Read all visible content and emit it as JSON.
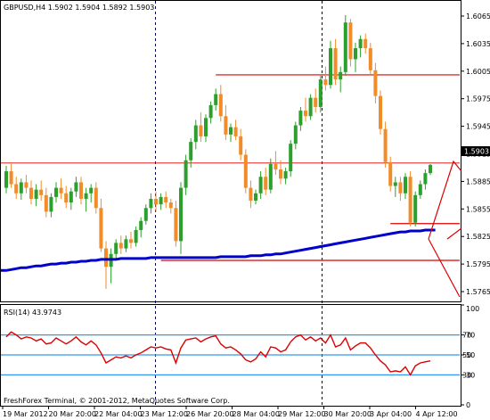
{
  "header": {
    "symbol_text": "GBPUSD,H4  1.5902 1.5904 1.5892 1.5903"
  },
  "rsi_header": {
    "text": "RSI(14) 43.9743"
  },
  "footer": {
    "copyright": "FreshForex Terminal, © 2001-2012, MetaQuotes Software Corp."
  },
  "price_axis": {
    "labels": [
      "1.6065",
      "1.6035",
      "1.6005",
      "1.5975",
      "1.5945",
      "1.5915",
      "1.5885",
      "1.5855",
      "1.5825",
      "1.5795",
      "1.5765"
    ],
    "current": "1.5903"
  },
  "rsi_axis": {
    "labels": [
      "100",
      "70",
      "50",
      "30",
      "0"
    ]
  },
  "time_axis": {
    "labels": [
      "19 Mar 2012",
      "20 Mar 20:00",
      "22 Mar 04:00",
      "23 Mar 12:00",
      "26 Mar 20:00",
      "28 Mar 04:00",
      "29 Mar 12:00",
      "30 Mar 20:00",
      "3 Apr 04:00",
      "4 Apr 12:00"
    ]
  },
  "colors": {
    "bull": "#2ca02c",
    "bear": "#f28c28",
    "ma": "#0000cc",
    "level": "#dd0000",
    "rsi_line": "#dd0000",
    "rsi_level": "#3399ee",
    "separator": "#000066"
  },
  "chart_data": {
    "type": "candlestick",
    "symbol": "GBPUSD",
    "timeframe": "H4",
    "ylim": [
      1.5755,
      1.6075
    ],
    "candles": [
      [
        1.5878,
        1.5902,
        1.5872,
        1.5896
      ],
      [
        1.5896,
        1.5904,
        1.5878,
        1.5882
      ],
      [
        1.5882,
        1.589,
        1.5866,
        1.5872
      ],
      [
        1.5872,
        1.5888,
        1.5865,
        1.5884
      ],
      [
        1.5884,
        1.5892,
        1.5872,
        1.5878
      ],
      [
        1.5878,
        1.5886,
        1.586,
        1.5866
      ],
      [
        1.5866,
        1.5882,
        1.5858,
        1.5876
      ],
      [
        1.5876,
        1.5886,
        1.5864,
        1.587
      ],
      [
        1.587,
        1.5878,
        1.5846,
        1.5852
      ],
      [
        1.5852,
        1.5872,
        1.5846,
        1.5868
      ],
      [
        1.5868,
        1.5884,
        1.5862,
        1.5878
      ],
      [
        1.5878,
        1.5888,
        1.5866,
        1.5872
      ],
      [
        1.5872,
        1.588,
        1.5856,
        1.5862
      ],
      [
        1.5862,
        1.5878,
        1.5854,
        1.5874
      ],
      [
        1.5874,
        1.589,
        1.5868,
        1.5884
      ],
      [
        1.5884,
        1.589,
        1.586,
        1.5866
      ],
      [
        1.5866,
        1.5878,
        1.5852,
        1.5872
      ],
      [
        1.5872,
        1.5882,
        1.5862,
        1.5878
      ],
      [
        1.5878,
        1.5884,
        1.585,
        1.5856
      ],
      [
        1.5856,
        1.5866,
        1.5808,
        1.5812
      ],
      [
        1.5812,
        1.582,
        1.5768,
        1.5792
      ],
      [
        1.5792,
        1.5812,
        1.5774,
        1.5806
      ],
      [
        1.5806,
        1.5822,
        1.58,
        1.5818
      ],
      [
        1.5818,
        1.5826,
        1.5806,
        1.5812
      ],
      [
        1.5812,
        1.5826,
        1.5808,
        1.5822
      ],
      [
        1.5822,
        1.583,
        1.5812,
        1.5818
      ],
      [
        1.5818,
        1.5836,
        1.5814,
        1.5832
      ],
      [
        1.5832,
        1.5846,
        1.5824,
        1.5842
      ],
      [
        1.5842,
        1.586,
        1.5838,
        1.5856
      ],
      [
        1.5856,
        1.5872,
        1.585,
        1.5866
      ],
      [
        1.5866,
        1.5874,
        1.5852,
        1.586
      ],
      [
        1.586,
        1.5872,
        1.5854,
        1.5868
      ],
      [
        1.5868,
        1.5874,
        1.5856,
        1.5862
      ],
      [
        1.5862,
        1.5866,
        1.585,
        1.5856
      ],
      [
        1.5856,
        1.5864,
        1.5814,
        1.582
      ],
      [
        1.582,
        1.5884,
        1.5806,
        1.5878
      ],
      [
        1.5878,
        1.5914,
        1.587,
        1.5908
      ],
      [
        1.5908,
        1.5932,
        1.59,
        1.5928
      ],
      [
        1.5928,
        1.5952,
        1.592,
        1.5946
      ],
      [
        1.5946,
        1.596,
        1.5928,
        1.5934
      ],
      [
        1.5934,
        1.5958,
        1.5928,
        1.5954
      ],
      [
        1.5954,
        1.5972,
        1.5948,
        1.5968
      ],
      [
        1.5968,
        1.5986,
        1.5962,
        1.598
      ],
      [
        1.598,
        1.599,
        1.595,
        1.5956
      ],
      [
        1.5956,
        1.5968,
        1.593,
        1.5936
      ],
      [
        1.5936,
        1.5948,
        1.5928,
        1.5944
      ],
      [
        1.5944,
        1.5952,
        1.593,
        1.5934
      ],
      [
        1.5934,
        1.5942,
        1.5908,
        1.5914
      ],
      [
        1.5914,
        1.592,
        1.5872,
        1.5878
      ],
      [
        1.5878,
        1.5886,
        1.5856,
        1.5864
      ],
      [
        1.5864,
        1.5876,
        1.586,
        1.5872
      ],
      [
        1.5872,
        1.5896,
        1.5866,
        1.589
      ],
      [
        1.589,
        1.59,
        1.587,
        1.5876
      ],
      [
        1.5876,
        1.591,
        1.5872,
        1.5904
      ],
      [
        1.5904,
        1.5918,
        1.5892,
        1.5898
      ],
      [
        1.5898,
        1.5908,
        1.5882,
        1.5888
      ],
      [
        1.5888,
        1.59,
        1.5882,
        1.5896
      ],
      [
        1.5896,
        1.593,
        1.589,
        1.5926
      ],
      [
        1.5926,
        1.595,
        1.592,
        1.5946
      ],
      [
        1.5946,
        1.5966,
        1.594,
        1.5962
      ],
      [
        1.5962,
        1.5976,
        1.595,
        1.5956
      ],
      [
        1.5956,
        1.598,
        1.5952,
        1.5976
      ],
      [
        1.5976,
        1.5986,
        1.596,
        1.5966
      ],
      [
        1.5966,
        1.6,
        1.596,
        1.5996
      ],
      [
        1.5996,
        1.601,
        1.5984,
        1.599
      ],
      [
        1.599,
        1.6038,
        1.5986,
        1.603
      ],
      [
        1.603,
        1.604,
        1.599,
        1.5996
      ],
      [
        1.5996,
        1.601,
        1.5982,
        1.6004
      ],
      [
        1.6004,
        1.6066,
        1.6,
        1.6058
      ],
      [
        1.6058,
        1.6062,
        1.601,
        1.6018
      ],
      [
        1.6018,
        1.6036,
        1.6004,
        1.603
      ],
      [
        1.603,
        1.6044,
        1.602,
        1.604
      ],
      [
        1.604,
        1.6046,
        1.6024,
        1.603
      ],
      [
        1.603,
        1.6036,
        1.6,
        1.6006
      ],
      [
        1.6006,
        1.6014,
        1.597,
        1.5978
      ],
      [
        1.5978,
        1.5984,
        1.5936,
        1.5942
      ],
      [
        1.5942,
        1.595,
        1.59,
        1.5906
      ],
      [
        1.5906,
        1.5912,
        1.5874,
        1.588
      ],
      [
        1.588,
        1.589,
        1.5868,
        1.5884
      ],
      [
        1.5884,
        1.589,
        1.5864,
        1.5872
      ],
      [
        1.5872,
        1.5894,
        1.5866,
        1.589
      ],
      [
        1.589,
        1.5896,
        1.5836,
        1.584
      ],
      [
        1.584,
        1.5874,
        1.5836,
        1.587
      ],
      [
        1.587,
        1.5886,
        1.5866,
        1.5882
      ],
      [
        1.5882,
        1.5898,
        1.5876,
        1.5894
      ],
      [
        1.5894,
        1.5904,
        1.5892,
        1.5903
      ]
    ],
    "ma": [
      1.5788,
      1.5789,
      1.579,
      1.5791,
      1.5791,
      1.5792,
      1.5793,
      1.5793,
      1.5794,
      1.5795,
      1.5795,
      1.5796,
      1.5796,
      1.5797,
      1.5797,
      1.5798,
      1.5798,
      1.5799,
      1.5799,
      1.58,
      1.58,
      1.58,
      1.58,
      1.5801,
      1.5801,
      1.5801,
      1.5801,
      1.5801,
      1.5801,
      1.5802,
      1.5802,
      1.5802,
      1.5802,
      1.5802,
      1.5802,
      1.5802,
      1.5802,
      1.5802,
      1.5802,
      1.5802,
      1.5802,
      1.5802,
      1.5802,
      1.5803,
      1.5803,
      1.5803,
      1.5803,
      1.5803,
      1.5803,
      1.5804,
      1.5804,
      1.5804,
      1.5805,
      1.5805,
      1.5806,
      1.5806,
      1.5807,
      1.5808,
      1.5809,
      1.581,
      1.5811,
      1.5812,
      1.5813,
      1.5814,
      1.5815,
      1.5816,
      1.5817,
      1.5818,
      1.5819,
      1.582,
      1.5821,
      1.5822,
      1.5823,
      1.5824,
      1.5825,
      1.5826,
      1.5827,
      1.5828,
      1.5829,
      1.583,
      1.583,
      1.5831,
      1.5831,
      1.5831,
      1.5832,
      1.5832,
      1.5832
    ],
    "levels": [
      {
        "price": 1.6001,
        "from": 42,
        "to": 86
      },
      {
        "price": 1.5905,
        "from": 0,
        "to": 86
      },
      {
        "price": 1.5839,
        "from": 77,
        "to": 86
      },
      {
        "price": 1.5799,
        "from": 31,
        "to": 86
      }
    ],
    "rsi": {
      "ylim": [
        0,
        100
      ],
      "levels": [
        70,
        50,
        30
      ],
      "value": 43.9743,
      "values": [
        68,
        73,
        70,
        66,
        68,
        67,
        64,
        66,
        61,
        62,
        67,
        64,
        61,
        64,
        68,
        63,
        60,
        64,
        60,
        52,
        42,
        45,
        48,
        47,
        49,
        47,
        50,
        52,
        55,
        58,
        57,
        58,
        56,
        55,
        42,
        57,
        65,
        66,
        67,
        63,
        66,
        68,
        69,
        61,
        57,
        58,
        55,
        51,
        45,
        43,
        46,
        53,
        48,
        58,
        57,
        53,
        55,
        63,
        68,
        70,
        65,
        68,
        64,
        67,
        62,
        70,
        58,
        60,
        67,
        55,
        59,
        62,
        62,
        57,
        50,
        44,
        40,
        33,
        34,
        33,
        38,
        30,
        39,
        42,
        43,
        44
      ]
    }
  }
}
